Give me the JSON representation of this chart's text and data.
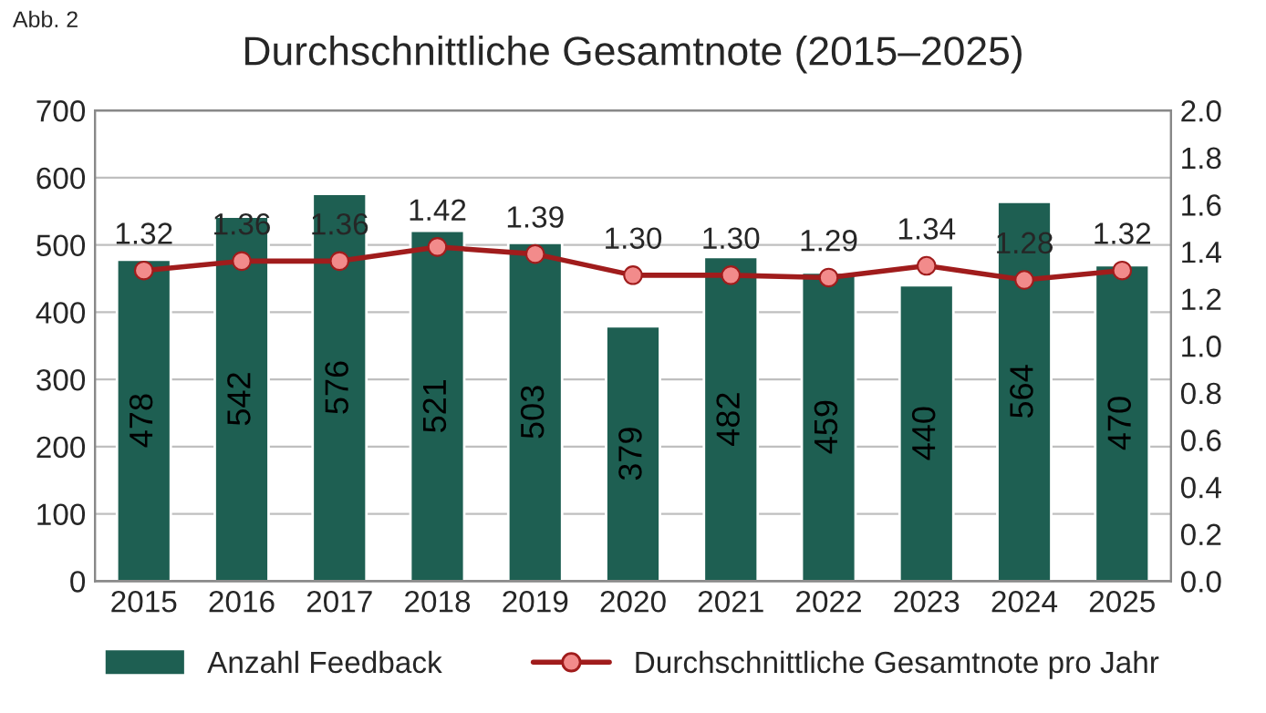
{
  "chart_data": {
    "type": "bar",
    "title": "Durchschnittliche Gesamtnote (2015–2025)",
    "annotations": [
      "Abb. 2"
    ],
    "categories": [
      "2015",
      "2016",
      "2017",
      "2018",
      "2019",
      "2020",
      "2021",
      "2022",
      "2023",
      "2024",
      "2025"
    ],
    "series": [
      {
        "name": "Anzahl Feedback",
        "color": "#1e5f52",
        "values": [
          478,
          542,
          576,
          521,
          503,
          379,
          482,
          459,
          440,
          564,
          470
        ],
        "data_labels": true
      },
      {
        "name": "Durchschnittliche Gesamtnote pro Jahr",
        "type": "line",
        "axis": "y2",
        "color": "#a01c1c",
        "marker": "circle",
        "line_style": "solid",
        "values": [
          1.32,
          1.36,
          1.36,
          1.42,
          1.39,
          1.3,
          1.3,
          1.29,
          1.34,
          1.28,
          1.32
        ],
        "value_labels": [
          "1.32",
          "1.36",
          "1.36",
          "1.42",
          "1.39",
          "1.30",
          "1.30",
          "1.29",
          "1.34",
          "1.28",
          "1.32"
        ]
      }
    ],
    "ylim": [
      0,
      700
    ],
    "yticks": [
      0,
      100,
      200,
      300,
      400,
      500,
      600,
      700
    ],
    "y2lim": [
      0,
      2.0
    ],
    "y2ticks": [
      {
        "value": 0,
        "label": "0.0"
      },
      {
        "value": 0.2,
        "label": "0.2"
      },
      {
        "value": 0.4,
        "label": "0.4"
      },
      {
        "value": 0.6,
        "label": "0.6"
      },
      {
        "value": 0.8,
        "label": "0.8"
      },
      {
        "value": 1.0,
        "label": "1.0"
      },
      {
        "value": 1.2,
        "label": "1.2"
      },
      {
        "value": 1.4,
        "label": "1.4"
      },
      {
        "value": 1.6,
        "label": "1.6"
      },
      {
        "value": 1.8,
        "label": "1.8"
      },
      {
        "value": 2.0,
        "label": "2.0"
      }
    ],
    "grid": "y",
    "legend": "bottom"
  }
}
